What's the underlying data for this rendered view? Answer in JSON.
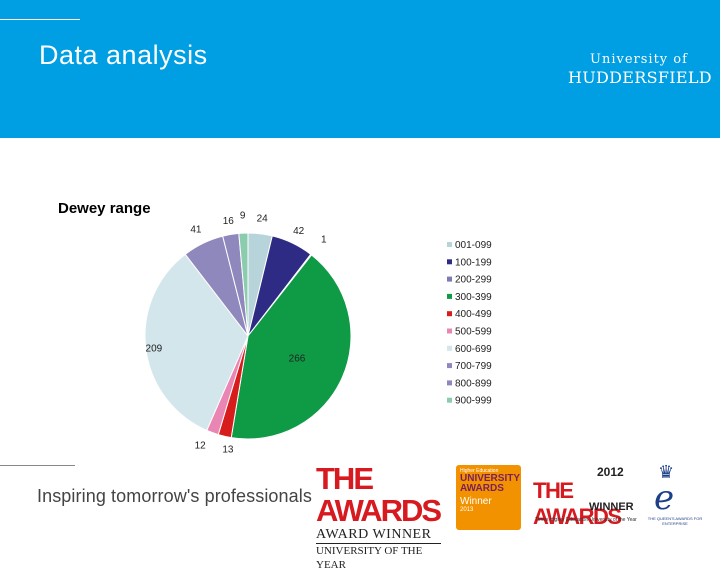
{
  "slide": {
    "title": "Data analysis",
    "logo": {
      "line1": "University of",
      "line2": "HUDDERSFIELD"
    },
    "tagline": "Inspiring tomorrow's professionals"
  },
  "awards": {
    "award1": {
      "big": "THE AWARDS",
      "mid": "AWARD WINNER",
      "sm": "UNIVERSITY OF THE YEAR"
    },
    "award2": {
      "a": "Higher Education",
      "b": "UNIVERSITY AWARDS",
      "c": "Winner",
      "d": "2013"
    },
    "award3": {
      "year": "2012",
      "big": "THE AWARDS",
      "win": "WINNER",
      "sm": "Times Higher Education University of the Year"
    },
    "award4": {
      "e": "e",
      "sm": "THE QUEEN'S AWARDS FOR ENTERPRISE"
    }
  },
  "colors": {
    "banner": "#009ee2",
    "slices": [
      "#b7d4db",
      "#2e2b85",
      "#7e7ab8",
      "#0f9a45",
      "#d71c1c",
      "#ea86b3",
      "#d2e6ec",
      "#8f88bd",
      "#8f88bd",
      "#8cccae"
    ]
  },
  "chart_data": {
    "type": "pie",
    "title": "Dewey range",
    "categories": [
      "001-099",
      "100-199",
      "200-299",
      "300-399",
      "400-499",
      "500-599",
      "600-699",
      "700-799",
      "800-899",
      "900-999"
    ],
    "values": [
      24,
      42,
      1,
      266,
      13,
      12,
      209,
      41,
      16,
      9
    ],
    "legend": "right"
  }
}
